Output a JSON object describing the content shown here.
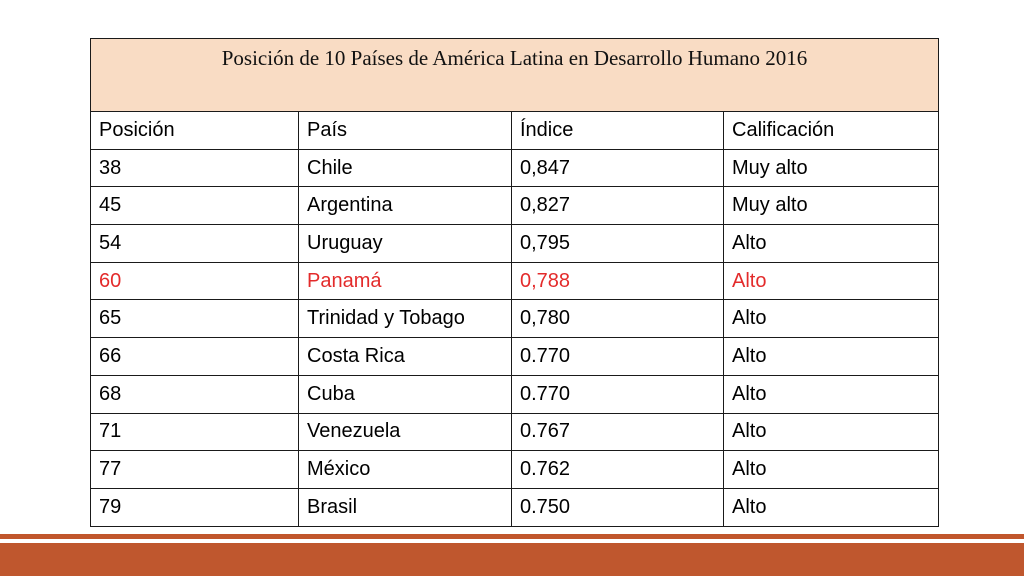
{
  "table": {
    "title": "Posición de 10 Países  de América Latina en  Desarrollo Humano 2016",
    "headers": [
      "Posición",
      "País",
      "Índice",
      "Calificación"
    ],
    "rows": [
      [
        "38",
        "Chile",
        "0,847",
        "Muy alto"
      ],
      [
        "45",
        "Argentina",
        "0,827",
        "Muy alto"
      ],
      [
        "54",
        "Uruguay",
        "0,795",
        "Alto"
      ],
      [
        "60",
        "Panamá",
        "0,788",
        "Alto"
      ],
      [
        "65",
        "Trinidad y Tobago",
        "0,780",
        "Alto"
      ],
      [
        "66",
        "Costa Rica",
        "0.770",
        "Alto"
      ],
      [
        "68",
        "Cuba",
        "0.770",
        "Alto"
      ],
      [
        "71",
        "Venezuela",
        "0.767",
        "Alto"
      ],
      [
        "77",
        "México",
        "0.762",
        "Alto"
      ],
      [
        "79",
        "Brasil",
        "0.750",
        "Alto"
      ]
    ],
    "highlight_row_index": 3,
    "highlight_color": "#e32b2b",
    "title_background": "#f9dcc4"
  },
  "footer": {
    "bar_color": "#bf572e"
  }
}
